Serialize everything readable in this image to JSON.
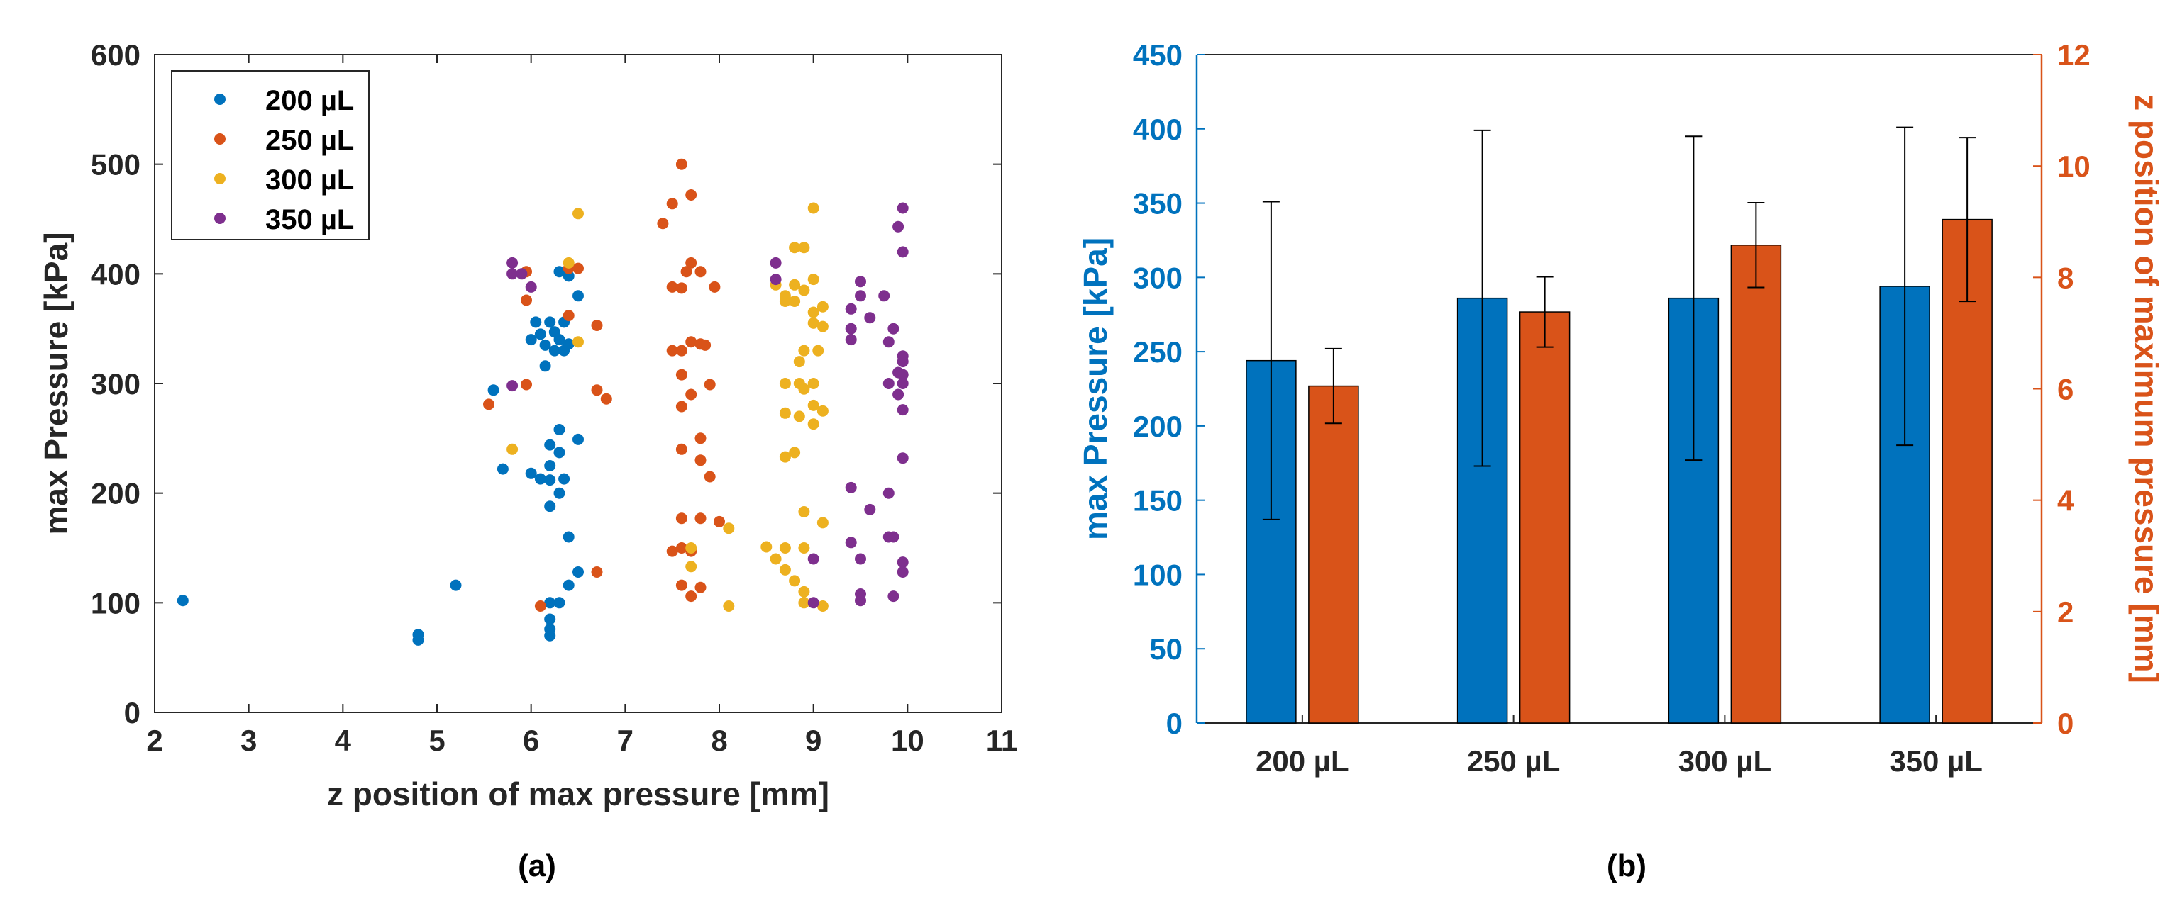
{
  "colors": {
    "c200": "#0072BD",
    "c250": "#D95319",
    "c300": "#EDB120",
    "c350": "#7E2F8E",
    "axis": "#262626"
  },
  "panel_labels": {
    "a": "(a)",
    "b": "(b)"
  },
  "chart_data": [
    {
      "type": "scatter",
      "title": "",
      "xlabel": "z position of max pressure [mm]",
      "ylabel": "max Pressure [kPa]",
      "xlim": [
        2,
        11
      ],
      "ylim": [
        0,
        600
      ],
      "xticks": [
        2,
        3,
        4,
        5,
        6,
        7,
        8,
        9,
        10,
        11
      ],
      "yticks": [
        0,
        100,
        200,
        300,
        400,
        500,
        600
      ],
      "legend": "top-left",
      "series": [
        {
          "name": "200 µL",
          "color": "#0072BD",
          "points": [
            [
              2.3,
              102
            ],
            [
              4.8,
              71
            ],
            [
              4.8,
              66
            ],
            [
              5.2,
              116
            ],
            [
              5.6,
              294
            ],
            [
              5.7,
              222
            ],
            [
              6.0,
              218
            ],
            [
              6.0,
              340
            ],
            [
              6.05,
              356
            ],
            [
              6.1,
              213
            ],
            [
              6.1,
              345
            ],
            [
              6.15,
              335
            ],
            [
              6.15,
              316
            ],
            [
              6.2,
              225
            ],
            [
              6.2,
              244
            ],
            [
              6.2,
              212
            ],
            [
              6.2,
              188
            ],
            [
              6.2,
              100
            ],
            [
              6.2,
              85
            ],
            [
              6.2,
              76
            ],
            [
              6.2,
              70
            ],
            [
              6.2,
              356
            ],
            [
              6.25,
              330
            ],
            [
              6.25,
              347
            ],
            [
              6.3,
              237
            ],
            [
              6.3,
              258
            ],
            [
              6.3,
              200
            ],
            [
              6.3,
              100
            ],
            [
              6.3,
              402
            ],
            [
              6.3,
              340
            ],
            [
              6.35,
              213
            ],
            [
              6.35,
              330
            ],
            [
              6.35,
              356
            ],
            [
              6.4,
              160
            ],
            [
              6.4,
              116
            ],
            [
              6.4,
              336
            ],
            [
              6.4,
              398
            ],
            [
              6.5,
              249
            ],
            [
              6.5,
              128
            ],
            [
              6.5,
              380
            ]
          ]
        },
        {
          "name": "250 µL",
          "color": "#D95319",
          "points": [
            [
              5.55,
              281
            ],
            [
              5.95,
              299
            ],
            [
              5.95,
              376
            ],
            [
              5.95,
              402
            ],
            [
              6.1,
              97
            ],
            [
              6.4,
              362
            ],
            [
              6.4,
              405
            ],
            [
              6.5,
              405
            ],
            [
              6.7,
              353
            ],
            [
              6.7,
              128
            ],
            [
              6.7,
              294
            ],
            [
              6.8,
              286
            ],
            [
              7.4,
              446
            ],
            [
              7.5,
              464
            ],
            [
              7.5,
              388
            ],
            [
              7.5,
              330
            ],
            [
              7.5,
              147
            ],
            [
              7.6,
              500
            ],
            [
              7.6,
              387
            ],
            [
              7.6,
              330
            ],
            [
              7.6,
              308
            ],
            [
              7.6,
              150
            ],
            [
              7.6,
              116
            ],
            [
              7.6,
              279
            ],
            [
              7.6,
              240
            ],
            [
              7.65,
              402
            ],
            [
              7.7,
              472
            ],
            [
              7.7,
              410
            ],
            [
              7.7,
              106
            ],
            [
              7.7,
              338
            ],
            [
              7.7,
              290
            ],
            [
              7.7,
              147
            ],
            [
              7.8,
              402
            ],
            [
              7.8,
              336
            ],
            [
              7.8,
              250
            ],
            [
              7.8,
              230
            ],
            [
              7.8,
              177
            ],
            [
              7.8,
              114
            ],
            [
              7.85,
              335
            ],
            [
              7.9,
              299
            ],
            [
              7.9,
              215
            ],
            [
              7.95,
              388
            ],
            [
              8.0,
              174
            ],
            [
              7.6,
              177
            ]
          ]
        },
        {
          "name": "300 µL",
          "color": "#EDB120",
          "points": [
            [
              5.8,
              240
            ],
            [
              6.4,
              410
            ],
            [
              6.5,
              455
            ],
            [
              6.5,
              338
            ],
            [
              7.7,
              133
            ],
            [
              7.7,
              150
            ],
            [
              8.1,
              97
            ],
            [
              8.1,
              168
            ],
            [
              8.5,
              151
            ],
            [
              8.6,
              140
            ],
            [
              8.6,
              390
            ],
            [
              8.7,
              375
            ],
            [
              8.7,
              380
            ],
            [
              8.7,
              300
            ],
            [
              8.7,
              273
            ],
            [
              8.7,
              233
            ],
            [
              8.7,
              150
            ],
            [
              8.7,
              130
            ],
            [
              8.8,
              424
            ],
            [
              8.8,
              390
            ],
            [
              8.8,
              375
            ],
            [
              8.8,
              237
            ],
            [
              8.8,
              120
            ],
            [
              8.85,
              320
            ],
            [
              8.85,
              270
            ],
            [
              8.85,
              300
            ],
            [
              8.9,
              424
            ],
            [
              8.9,
              385
            ],
            [
              8.9,
              330
            ],
            [
              8.9,
              183
            ],
            [
              8.9,
              110
            ],
            [
              8.9,
              100
            ],
            [
              8.9,
              150
            ],
            [
              8.9,
              295
            ],
            [
              9.0,
              460
            ],
            [
              9.0,
              395
            ],
            [
              9.0,
              365
            ],
            [
              9.0,
              355
            ],
            [
              9.0,
              300
            ],
            [
              9.0,
              280
            ],
            [
              9.0,
              263
            ],
            [
              9.05,
              330
            ],
            [
              9.1,
              370
            ],
            [
              9.1,
              352
            ],
            [
              9.1,
              173
            ],
            [
              9.1,
              97
            ],
            [
              9.1,
              275
            ]
          ]
        },
        {
          "name": "350 µL",
          "color": "#7E2F8E",
          "points": [
            [
              5.8,
              410
            ],
            [
              5.8,
              400
            ],
            [
              5.9,
              400
            ],
            [
              5.8,
              298
            ],
            [
              6.0,
              388
            ],
            [
              8.6,
              410
            ],
            [
              8.6,
              395
            ],
            [
              9.0,
              100
            ],
            [
              9.0,
              140
            ],
            [
              9.4,
              340
            ],
            [
              9.4,
              350
            ],
            [
              9.4,
              368
            ],
            [
              9.4,
              205
            ],
            [
              9.4,
              155
            ],
            [
              9.5,
              380
            ],
            [
              9.5,
              393
            ],
            [
              9.5,
              108
            ],
            [
              9.5,
              102
            ],
            [
              9.5,
              140
            ],
            [
              9.6,
              185
            ],
            [
              9.6,
              360
            ],
            [
              9.75,
              380
            ],
            [
              9.8,
              338
            ],
            [
              9.8,
              160
            ],
            [
              9.8,
              200
            ],
            [
              9.8,
              300
            ],
            [
              9.85,
              350
            ],
            [
              9.85,
              160
            ],
            [
              9.85,
              106
            ],
            [
              9.9,
              443
            ],
            [
              9.9,
              310
            ],
            [
              9.9,
              290
            ],
            [
              9.95,
              460
            ],
            [
              9.95,
              420
            ],
            [
              9.95,
              320
            ],
            [
              9.95,
              325
            ],
            [
              9.95,
              308
            ],
            [
              9.95,
              300
            ],
            [
              9.95,
              276
            ],
            [
              9.95,
              232
            ],
            [
              9.95,
              137
            ],
            [
              9.95,
              128
            ]
          ]
        }
      ]
    },
    {
      "type": "bar",
      "title": "",
      "categories": [
        "200 µL",
        "250 µL",
        "300 µL",
        "350 µL"
      ],
      "xlabel": "",
      "ylabel_left": "max Pressure [kPa]",
      "ylabel_right": "z position of maximum pressure [mm]",
      "ylim_left": [
        0,
        450
      ],
      "ylim_right": [
        0,
        12
      ],
      "yticks_left": [
        0,
        50,
        100,
        150,
        200,
        250,
        300,
        350,
        400,
        450
      ],
      "yticks_right": [
        0,
        2,
        4,
        6,
        8,
        10,
        12
      ],
      "series": [
        {
          "name": "max Pressure [kPa]",
          "axis": "left",
          "color": "#0072BD",
          "values": [
            244,
            286,
            286,
            294
          ],
          "errors": [
            107,
            113,
            109,
            107
          ]
        },
        {
          "name": "z position of maximum pressure [mm]",
          "axis": "right",
          "color": "#D95319",
          "values": [
            6.05,
            7.38,
            8.58,
            9.04
          ],
          "errors": [
            0.67,
            0.63,
            0.76,
            1.47
          ]
        }
      ]
    }
  ]
}
